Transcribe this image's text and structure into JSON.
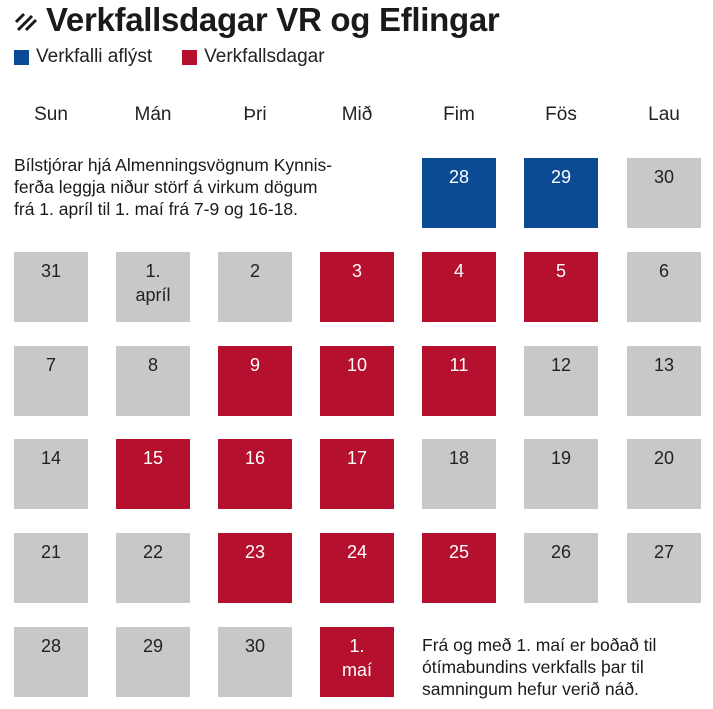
{
  "title": "Verkfallsdagar VR og Eflingar",
  "legend": [
    {
      "label": "Verkfalli aflýst",
      "color": "#0b4a94"
    },
    {
      "label": "Verkfallsdagar",
      "color": "#b5112f"
    }
  ],
  "weekdays": [
    "Sun",
    "Mán",
    "Þri",
    "Mið",
    "Fim",
    "Fös",
    "Lau"
  ],
  "colors": {
    "gray": "#c8c8ca",
    "red": "#b5112f",
    "blue": "#0b4a94"
  },
  "note_top": [
    "Bílstjórar hjá Almenningsvögnum Kynnis-",
    "ferða leggja niður störf á virkum dögum",
    "frá 1. apríl til 1. maí frá 7-9 og 16-18."
  ],
  "note_bottom": [
    "Frá og með 1. maí er boðað til",
    "ótímabundins verkfalls þar til",
    "samningum hefur verið náð."
  ],
  "weeks": [
    [
      null,
      null,
      null,
      null,
      {
        "label": "28",
        "status": "blue"
      },
      {
        "label": "29",
        "status": "blue"
      },
      {
        "label": "30",
        "status": "gray"
      }
    ],
    [
      {
        "label": "31",
        "status": "gray"
      },
      {
        "label": "1.\napríl",
        "status": "gray"
      },
      {
        "label": "2",
        "status": "gray"
      },
      {
        "label": "3",
        "status": "red"
      },
      {
        "label": "4",
        "status": "red"
      },
      {
        "label": "5",
        "status": "red"
      },
      {
        "label": "6",
        "status": "gray"
      }
    ],
    [
      {
        "label": "7",
        "status": "gray"
      },
      {
        "label": "8",
        "status": "gray"
      },
      {
        "label": "9",
        "status": "red"
      },
      {
        "label": "10",
        "status": "red"
      },
      {
        "label": "11",
        "status": "red"
      },
      {
        "label": "12",
        "status": "gray"
      },
      {
        "label": "13",
        "status": "gray"
      }
    ],
    [
      {
        "label": "14",
        "status": "gray"
      },
      {
        "label": "15",
        "status": "red"
      },
      {
        "label": "16",
        "status": "red"
      },
      {
        "label": "17",
        "status": "red"
      },
      {
        "label": "18",
        "status": "gray"
      },
      {
        "label": "19",
        "status": "gray"
      },
      {
        "label": "20",
        "status": "gray"
      }
    ],
    [
      {
        "label": "21",
        "status": "gray"
      },
      {
        "label": "22",
        "status": "gray"
      },
      {
        "label": "23",
        "status": "red"
      },
      {
        "label": "24",
        "status": "red"
      },
      {
        "label": "25",
        "status": "red"
      },
      {
        "label": "26",
        "status": "gray"
      },
      {
        "label": "27",
        "status": "gray"
      }
    ],
    [
      {
        "label": "28",
        "status": "gray"
      },
      {
        "label": "29",
        "status": "gray"
      },
      {
        "label": "30",
        "status": "gray"
      },
      {
        "label": "1.\nmaí",
        "status": "red"
      },
      null,
      null,
      null
    ]
  ]
}
